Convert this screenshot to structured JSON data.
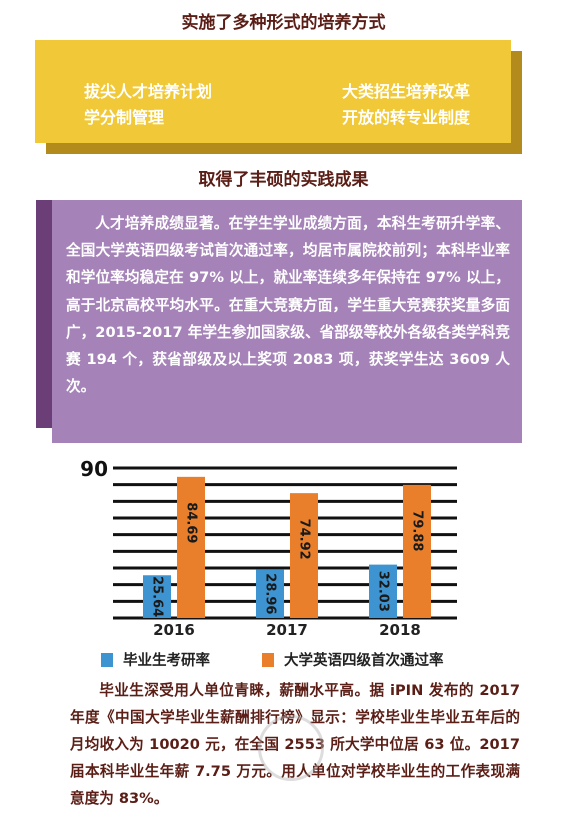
{
  "section1_title": "实施了多种形式的培养方式",
  "yellow_items": [
    "拔尖人才培养计划",
    "大类招生培养改革",
    "学分制管理",
    "开放的转专业制度"
  ],
  "section2_title": "取得了丰硕的实践成果",
  "purple_text": "人才培养成绩显著。在学生学业成绩方面，本科生考研升学率、全国大学英语四级考试首次通过率，均居市属院校前列；本科毕业率和学位率均稳定在 97% 以上，就业率连续多年保持在 97% 以上，高于北京高校平均水平。在重大竞赛方面，学生重大竞赛获奖量多面广，2015-2017 年学生参加国家级、省部级等校外各级各类学科竞赛 194 个，获省部级及以上奖项 2083 项，获奖学生达 3609 人次。",
  "chart_data": {
    "type": "bar",
    "categories": [
      "2016",
      "2017",
      "2018"
    ],
    "series": [
      {
        "name": "毕业生考研率",
        "values": [
          25.64,
          28.96,
          32.03
        ],
        "color": "#3d94d0"
      },
      {
        "name": "大学英语四级首次通过率",
        "values": [
          84.69,
          74.92,
          79.88
        ],
        "color": "#e97f2b"
      }
    ],
    "ylim": [
      0,
      90
    ],
    "y_tick_label": "90",
    "grid": true,
    "legend": "bottom"
  },
  "paragraph": "毕业生深受用人单位青睐，薪酬水平高。据 iPIN 发布的 2017 年度《中国大学毕业生薪酬排行榜》显示：学校毕业生毕业五年后的月均收入为 10020 元，在全国 2553 所大学中位居 63 位。2017 届本科毕业生年薪 7.75 万元。用人单位对学校毕业生的工作表现满意度为 83%。"
}
